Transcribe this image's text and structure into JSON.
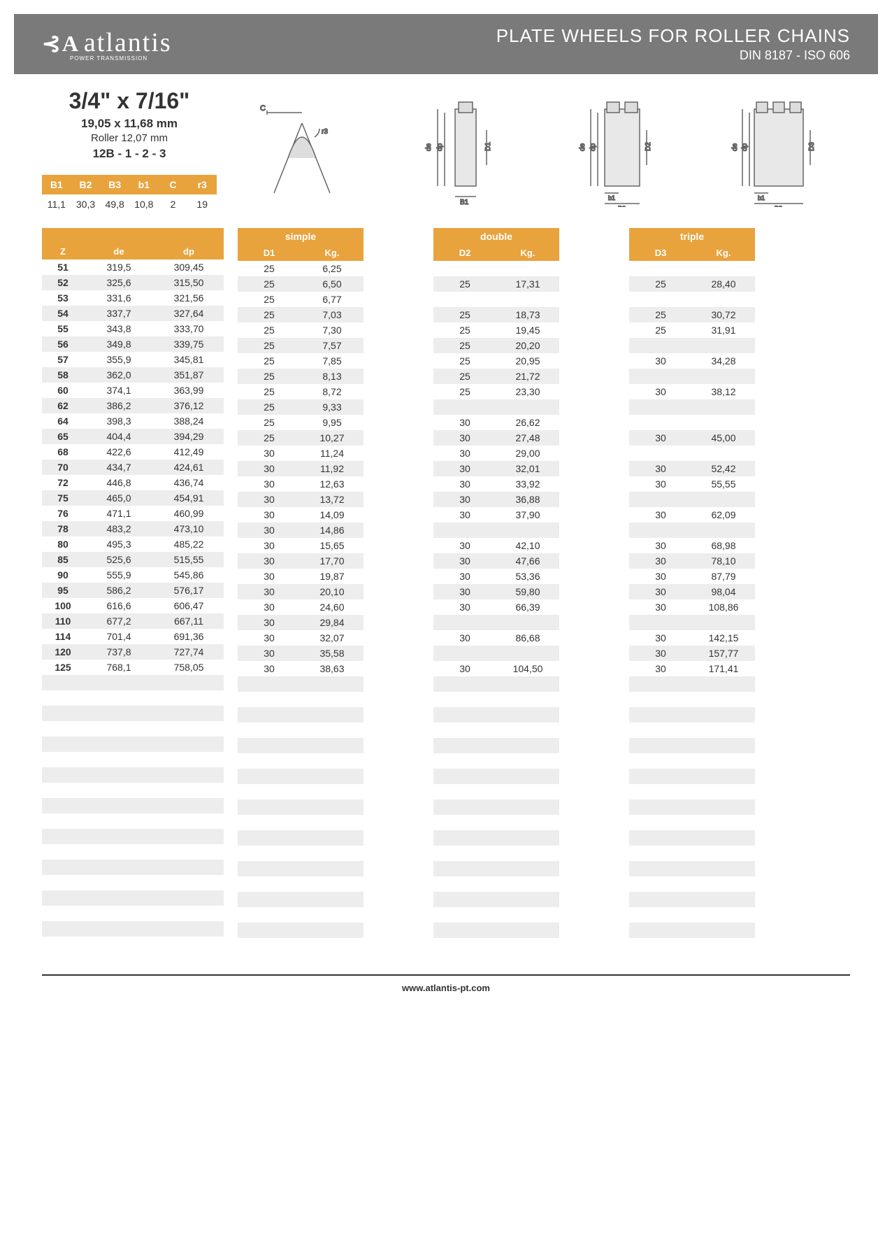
{
  "header": {
    "brand": "atlantis",
    "brand_sub": "POWER TRANSMISSION",
    "title": "PLATE WHEELS FOR ROLLER CHAINS",
    "subtitle": "DIN 8187 - ISO 606"
  },
  "spec": {
    "size": "3/4\" x 7/16\"",
    "mm": "19,05 x 11,68 mm",
    "roller": "Roller 12,07 mm",
    "code": "12B - 1 - 2 - 3"
  },
  "small_table": {
    "headers": [
      "B1",
      "B2",
      "B3",
      "b1",
      "C",
      "r3"
    ],
    "values": [
      "11,1",
      "30,3",
      "49,8",
      "10,8",
      "2",
      "19"
    ]
  },
  "colors": {
    "header_bg": "#7a7a7a",
    "accent": "#e8a33d",
    "row_alt": "#ededed",
    "text": "#333333"
  },
  "sections": {
    "base_headers": [
      "Z",
      "de",
      "dp"
    ],
    "simple": {
      "label": "simple",
      "headers": [
        "D1",
        "Kg."
      ]
    },
    "double": {
      "label": "double",
      "headers": [
        "D2",
        "Kg."
      ]
    },
    "triple": {
      "label": "triple",
      "headers": [
        "D3",
        "Kg."
      ]
    }
  },
  "rows": [
    {
      "z": "51",
      "de": "319,5",
      "dp": "309,45",
      "s": [
        "25",
        "6,25"
      ],
      "d": [
        "",
        ""
      ],
      "t": [
        "",
        ""
      ]
    },
    {
      "z": "52",
      "de": "325,6",
      "dp": "315,50",
      "s": [
        "25",
        "6,50"
      ],
      "d": [
        "25",
        "17,31"
      ],
      "t": [
        "25",
        "28,40"
      ]
    },
    {
      "z": "53",
      "de": "331,6",
      "dp": "321,56",
      "s": [
        "25",
        "6,77"
      ],
      "d": [
        "",
        ""
      ],
      "t": [
        "",
        ""
      ]
    },
    {
      "z": "54",
      "de": "337,7",
      "dp": "327,64",
      "s": [
        "25",
        "7,03"
      ],
      "d": [
        "25",
        "18,73"
      ],
      "t": [
        "25",
        "30,72"
      ]
    },
    {
      "z": "55",
      "de": "343,8",
      "dp": "333,70",
      "s": [
        "25",
        "7,30"
      ],
      "d": [
        "25",
        "19,45"
      ],
      "t": [
        "25",
        "31,91"
      ]
    },
    {
      "z": "56",
      "de": "349,8",
      "dp": "339,75",
      "s": [
        "25",
        "7,57"
      ],
      "d": [
        "25",
        "20,20"
      ],
      "t": [
        "",
        ""
      ]
    },
    {
      "z": "57",
      "de": "355,9",
      "dp": "345,81",
      "s": [
        "25",
        "7,85"
      ],
      "d": [
        "25",
        "20,95"
      ],
      "t": [
        "30",
        "34,28"
      ]
    },
    {
      "z": "58",
      "de": "362,0",
      "dp": "351,87",
      "s": [
        "25",
        "8,13"
      ],
      "d": [
        "25",
        "21,72"
      ],
      "t": [
        "",
        ""
      ]
    },
    {
      "z": "60",
      "de": "374,1",
      "dp": "363,99",
      "s": [
        "25",
        "8,72"
      ],
      "d": [
        "25",
        "23,30"
      ],
      "t": [
        "30",
        "38,12"
      ]
    },
    {
      "z": "62",
      "de": "386,2",
      "dp": "376,12",
      "s": [
        "25",
        "9,33"
      ],
      "d": [
        "",
        ""
      ],
      "t": [
        "",
        ""
      ]
    },
    {
      "z": "64",
      "de": "398,3",
      "dp": "388,24",
      "s": [
        "25",
        "9,95"
      ],
      "d": [
        "30",
        "26,62"
      ],
      "t": [
        "",
        ""
      ]
    },
    {
      "z": "65",
      "de": "404,4",
      "dp": "394,29",
      "s": [
        "25",
        "10,27"
      ],
      "d": [
        "30",
        "27,48"
      ],
      "t": [
        "30",
        "45,00"
      ]
    },
    {
      "z": "68",
      "de": "422,6",
      "dp": "412,49",
      "s": [
        "30",
        "11,24"
      ],
      "d": [
        "30",
        "29,00"
      ],
      "t": [
        "",
        ""
      ]
    },
    {
      "z": "70",
      "de": "434,7",
      "dp": "424,61",
      "s": [
        "30",
        "11,92"
      ],
      "d": [
        "30",
        "32,01"
      ],
      "t": [
        "30",
        "52,42"
      ]
    },
    {
      "z": "72",
      "de": "446,8",
      "dp": "436,74",
      "s": [
        "30",
        "12,63"
      ],
      "d": [
        "30",
        "33,92"
      ],
      "t": [
        "30",
        "55,55"
      ]
    },
    {
      "z": "75",
      "de": "465,0",
      "dp": "454,91",
      "s": [
        "30",
        "13,72"
      ],
      "d": [
        "30",
        "36,88"
      ],
      "t": [
        "",
        ""
      ]
    },
    {
      "z": "76",
      "de": "471,1",
      "dp": "460,99",
      "s": [
        "30",
        "14,09"
      ],
      "d": [
        "30",
        "37,90"
      ],
      "t": [
        "30",
        "62,09"
      ]
    },
    {
      "z": "78",
      "de": "483,2",
      "dp": "473,10",
      "s": [
        "30",
        "14,86"
      ],
      "d": [
        "",
        ""
      ],
      "t": [
        "",
        ""
      ]
    },
    {
      "z": "80",
      "de": "495,3",
      "dp": "485,22",
      "s": [
        "30",
        "15,65"
      ],
      "d": [
        "30",
        "42,10"
      ],
      "t": [
        "30",
        "68,98"
      ]
    },
    {
      "z": "85",
      "de": "525,6",
      "dp": "515,55",
      "s": [
        "30",
        "17,70"
      ],
      "d": [
        "30",
        "47,66"
      ],
      "t": [
        "30",
        "78,10"
      ]
    },
    {
      "z": "90",
      "de": "555,9",
      "dp": "545,86",
      "s": [
        "30",
        "19,87"
      ],
      "d": [
        "30",
        "53,36"
      ],
      "t": [
        "30",
        "87,79"
      ]
    },
    {
      "z": "95",
      "de": "586,2",
      "dp": "576,17",
      "s": [
        "30",
        "20,10"
      ],
      "d": [
        "30",
        "59,80"
      ],
      "t": [
        "30",
        "98,04"
      ]
    },
    {
      "z": "100",
      "de": "616,6",
      "dp": "606,47",
      "s": [
        "30",
        "24,60"
      ],
      "d": [
        "30",
        "66,39"
      ],
      "t": [
        "30",
        "108,86"
      ]
    },
    {
      "z": "110",
      "de": "677,2",
      "dp": "667,11",
      "s": [
        "30",
        "29,84"
      ],
      "d": [
        "",
        ""
      ],
      "t": [
        "",
        ""
      ]
    },
    {
      "z": "114",
      "de": "701,4",
      "dp": "691,36",
      "s": [
        "30",
        "32,07"
      ],
      "d": [
        "30",
        "86,68"
      ],
      "t": [
        "30",
        "142,15"
      ]
    },
    {
      "z": "120",
      "de": "737,8",
      "dp": "727,74",
      "s": [
        "30",
        "35,58"
      ],
      "d": [
        "",
        ""
      ],
      "t": [
        "30",
        "157,77"
      ]
    },
    {
      "z": "125",
      "de": "768,1",
      "dp": "758,05",
      "s": [
        "30",
        "38,63"
      ],
      "d": [
        "30",
        "104,50"
      ],
      "t": [
        "30",
        "171,41"
      ]
    }
  ],
  "empty_rows": 18,
  "footer": {
    "url": "www.atlantis-pt.com"
  }
}
